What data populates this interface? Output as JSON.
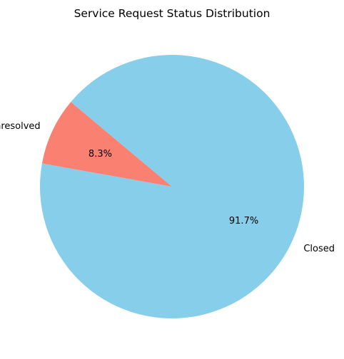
{
  "chart_data": {
    "type": "pie",
    "title": "Service Request Status Distribution",
    "slices": [
      {
        "label": "Unresolved",
        "value": 8.3,
        "pct_label": "8.3%",
        "color": "#fa8072"
      },
      {
        "label": "Closed",
        "value": 91.7,
        "pct_label": "91.7%",
        "color": "#87ceeb"
      }
    ],
    "start_angle_deg": 140,
    "legend": "none"
  }
}
